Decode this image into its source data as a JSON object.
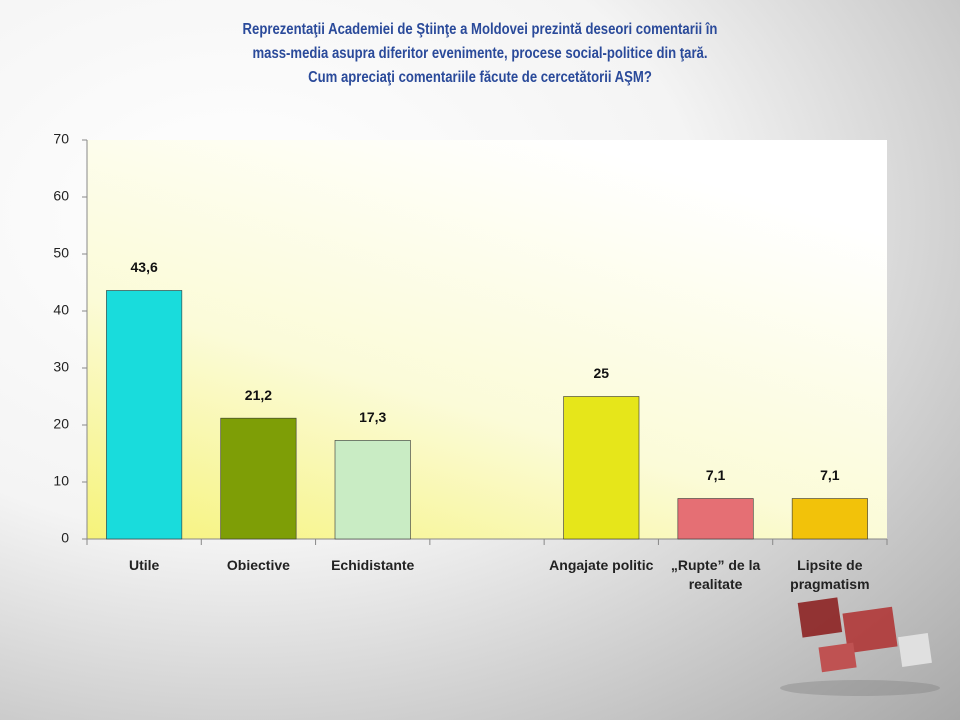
{
  "chart_data": {
    "type": "bar",
    "title": [
      "Reprezentaţii Academiei de Ştiinţe a Moldovei prezintă deseori comentarii în",
      "mass-media asupra diferitor evenimente, procese social-politice din ţară.",
      "Cum apreciaţi comentariile făcute de cercetătorii AŞM?"
    ],
    "categories": [
      "Utile",
      "Obiective",
      "Echidistante",
      null,
      "Angajate politic",
      "„Rupte” de la realitate",
      "Lipsite de pragmatism"
    ],
    "values": [
      43.6,
      21.2,
      17.3,
      null,
      25,
      7.1,
      7.1
    ],
    "value_labels": [
      "43,6",
      "21,2",
      "17,3",
      null,
      "25",
      "7,1",
      "7,1"
    ],
    "colors": [
      "#19dcdc",
      "#7e9e06",
      "#c9ecc4",
      null,
      "#e6e61a",
      "#e56f74",
      "#f2c20a"
    ],
    "ylim": [
      0,
      70
    ],
    "yticks": [
      0,
      10,
      20,
      30,
      40,
      50,
      60,
      70
    ],
    "grid": false
  }
}
